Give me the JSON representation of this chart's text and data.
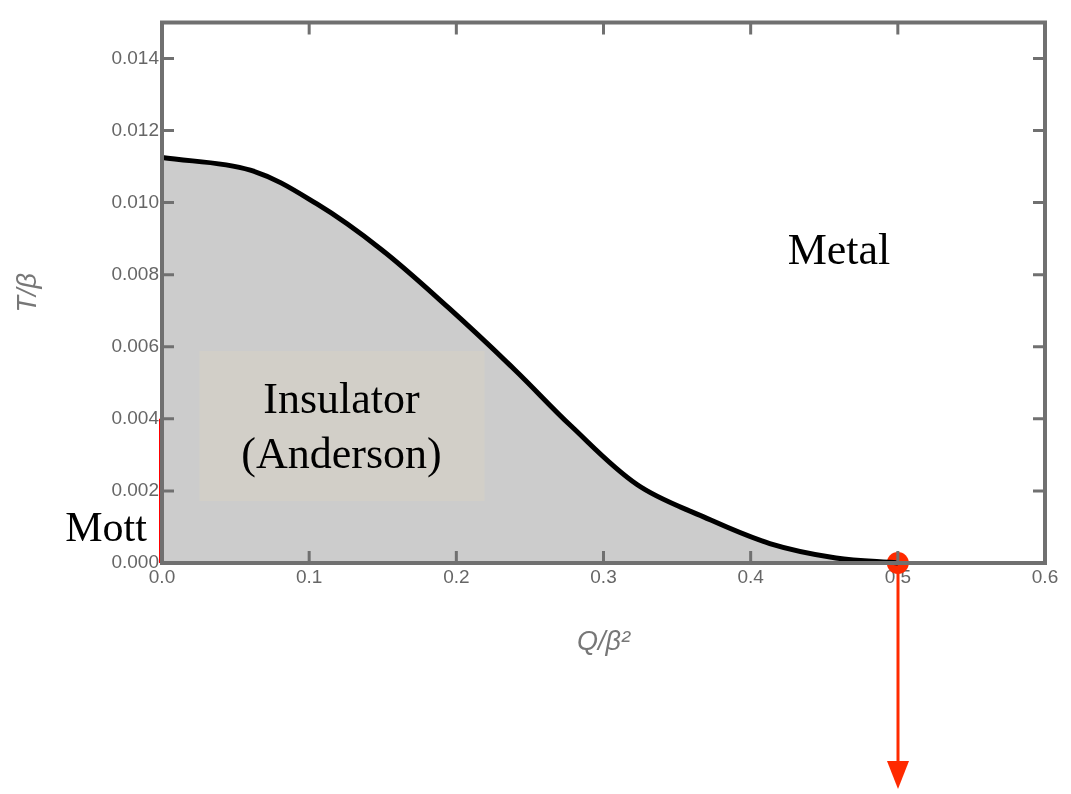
{
  "chart_data": {
    "type": "area",
    "xlabel": "Q/β²",
    "ylabel": "T/β",
    "xlim": [
      0,
      0.6
    ],
    "ylim": [
      0,
      0.015
    ],
    "xticks": [
      {
        "value": 0,
        "label": "0.0"
      },
      {
        "value": 0.1,
        "label": "0.1"
      },
      {
        "value": 0.2,
        "label": "0.2"
      },
      {
        "value": 0.3,
        "label": "0.3"
      },
      {
        "value": 0.4,
        "label": "0.4"
      },
      {
        "value": 0.5,
        "label": "0.5"
      },
      {
        "value": 0.6,
        "label": "0.6"
      }
    ],
    "yticks": [
      {
        "value": 0,
        "label": "0.000"
      },
      {
        "value": 0.002,
        "label": "0.002"
      },
      {
        "value": 0.004,
        "label": "0.004"
      },
      {
        "value": 0.006,
        "label": "0.006"
      },
      {
        "value": 0.008,
        "label": "0.008"
      },
      {
        "value": 0.01,
        "label": "0.010"
      },
      {
        "value": 0.012,
        "label": "0.012"
      },
      {
        "value": 0.014,
        "label": "0.014"
      }
    ],
    "grid": false,
    "legend": false,
    "series": [
      {
        "color": "#000000",
        "marker": "none",
        "x": [
          0,
          0.06,
          0.105,
          0.149,
          0.195,
          0.24,
          0.278,
          0.323,
          0.368,
          0.413,
          0.458,
          0.5
        ],
        "values": [
          0.01125,
          0.0109,
          0.00997,
          0.0087,
          0.00707,
          0.00535,
          0.0038,
          0.00217,
          0.00128,
          0.00054,
          0.00014,
          0
        ]
      },
      {
        "type": "line",
        "color": "#ff0000",
        "marker": "none",
        "line_style": "solid",
        "x": [
          0,
          0
        ],
        "values": [
          0,
          0.004
        ]
      },
      {
        "type": "scatter",
        "color": "#ff2a00",
        "marker": "circle",
        "x": [
          0.5
        ],
        "values": [
          0
        ]
      }
    ],
    "annotations": [
      "Metal",
      "Insulator (Anderson)",
      "Mott"
    ]
  }
}
